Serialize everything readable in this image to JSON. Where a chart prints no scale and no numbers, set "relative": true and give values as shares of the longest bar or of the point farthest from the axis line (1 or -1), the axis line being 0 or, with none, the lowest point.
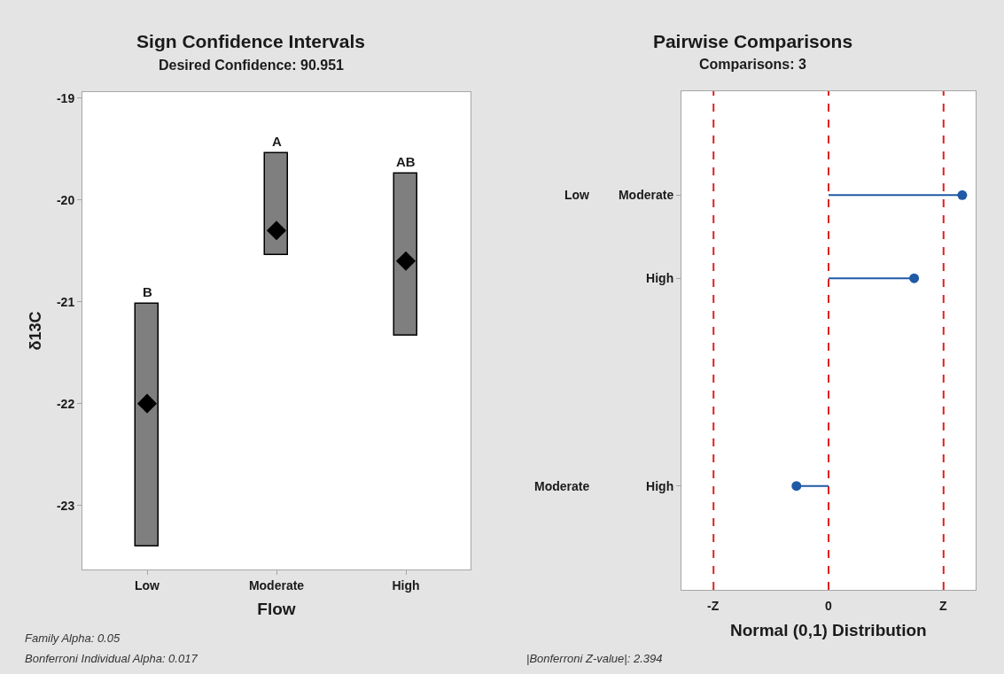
{
  "chart_data": [
    {
      "type": "bar",
      "title": "Sign Confidence Intervals",
      "subtitle": "Desired Confidence: 90.951",
      "xlabel": "Flow",
      "ylabel": "δ13C",
      "categories": [
        "Low",
        "Moderate",
        "High"
      ],
      "series": [
        {
          "color": "#7f7f7f",
          "base": [
            -23.4,
            -20.54,
            -21.33
          ],
          "values": [
            2.38,
            1.0,
            1.59
          ]
        },
        {
          "type": "scatter",
          "color": "#000000",
          "marker": "diamond",
          "x": [
            "Low",
            "Moderate",
            "High"
          ],
          "values": [
            -22.0,
            -20.3,
            -20.6
          ]
        }
      ],
      "ylim": [
        -23.63,
        -18.94
      ],
      "yticks": [
        -23,
        -22,
        -21,
        -20,
        -19
      ],
      "annotations": [
        {
          "text": "B",
          "x": "Low",
          "y": -21.02
        },
        {
          "text": "A",
          "x": "Moderate",
          "y": -19.54
        },
        {
          "text": "AB",
          "x": "High",
          "y": -19.74
        },
        "Family Alpha: 0.05",
        "Bonferroni Individual Alpha: 0.017"
      ]
    },
    {
      "type": "lollipop",
      "orientation": "horizontal",
      "relative": true,
      "title": "Pairwise Comparisons",
      "subtitle": "Comparisons: 3",
      "xlabel": "Normal (0,1) Distribution",
      "categories": [
        "Moderate",
        null,
        "High",
        null,
        null,
        null,
        null,
        "High"
      ],
      "y2_categories": [
        "Low",
        null,
        null,
        null,
        null,
        null,
        null,
        "Moderate"
      ],
      "values": [
        1,
        null,
        0.64,
        null,
        null,
        null,
        null,
        -0.24
      ],
      "color": "#1f5aa6",
      "marker": "circle",
      "ref_lines": [
        {
          "axis": "x",
          "value": -0.86,
          "label": "-Z",
          "color": "#e02020",
          "line_style": "dashed"
        },
        {
          "axis": "x",
          "value": 0,
          "label": "0",
          "color": "#e02020",
          "line_style": "dashed"
        },
        {
          "axis": "x",
          "value": 0.86,
          "label": "Z",
          "color": "#e02020",
          "line_style": "dashed"
        }
      ],
      "annotations": [
        "|Bonferroni Z-value|: 2.394"
      ]
    }
  ]
}
